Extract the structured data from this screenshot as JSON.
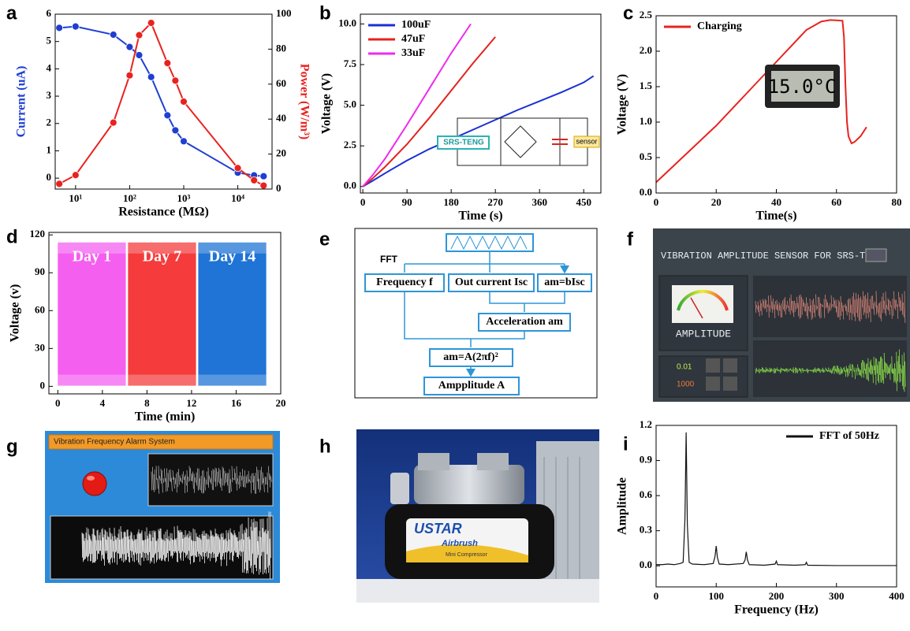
{
  "chart_data": [
    {
      "type": "line",
      "label": "a",
      "xlabel": "Resistance (MΩ)",
      "ylabel": "Current (uA)",
      "y2label": "Power (W/m³)",
      "xlog": true,
      "markers": true,
      "xlim": [
        4.2,
        43000
      ],
      "xticks": [
        {
          "value": 10,
          "label": "10¹"
        },
        {
          "value": 100,
          "label": "10²"
        },
        {
          "value": 1000,
          "label": "10³"
        },
        {
          "value": 10000,
          "label": "10⁴"
        }
      ],
      "ylim": [
        -0.4,
        6
      ],
      "yticks": [
        0,
        1,
        2,
        3,
        4,
        5,
        6
      ],
      "y2lim": [
        0,
        100
      ],
      "y2ticks": [
        0,
        20,
        40,
        60,
        80,
        100
      ],
      "series": [
        {
          "color": "#1f3fd1",
          "x": [
            5,
            10,
            50,
            100,
            150,
            250,
            500,
            700,
            1000,
            10000,
            20000,
            30000
          ],
          "values": [
            5.5,
            5.55,
            5.25,
            4.8,
            4.5,
            3.7,
            2.3,
            1.75,
            1.35,
            0.2,
            0.1,
            0.07
          ]
        },
        {
          "color": "#e8231f",
          "axis": "y2",
          "x": [
            5,
            10,
            50,
            100,
            150,
            250,
            500,
            700,
            1000,
            10000,
            20000,
            30000
          ],
          "values": [
            3,
            8,
            38,
            65,
            88,
            95,
            72,
            62,
            50,
            12,
            5,
            2
          ]
        }
      ]
    },
    {
      "type": "line",
      "label": "b",
      "xlabel": "Time (s)",
      "ylabel": "Voltage (V)",
      "legend": "upper left",
      "xlim": [
        -5,
        485
      ],
      "xticks": [
        0,
        90,
        180,
        270,
        360,
        450
      ],
      "ylim": [
        -0.4,
        10.6
      ],
      "yticks": [
        {
          "value": 0,
          "label": "0.0"
        },
        {
          "value": 2.5,
          "label": "2.5"
        },
        {
          "value": 5,
          "label": "5.0"
        },
        {
          "value": 7.5,
          "label": "7.5"
        },
        {
          "value": 10,
          "label": "10.0"
        }
      ],
      "series": [
        {
          "name": "100uF",
          "color": "#1a2fd6",
          "x": [
            0,
            20,
            50,
            90,
            135,
            180,
            225,
            270,
            315,
            360,
            405,
            450,
            470
          ],
          "values": [
            0,
            0.35,
            0.9,
            1.6,
            2.3,
            2.9,
            3.5,
            4.1,
            4.7,
            5.25,
            5.8,
            6.4,
            6.8
          ]
        },
        {
          "name": "47uF",
          "color": "#e3221c",
          "x": [
            0,
            20,
            45,
            90,
            135,
            180,
            225,
            270
          ],
          "values": [
            0,
            0.5,
            1.2,
            2.6,
            4.2,
            5.9,
            7.6,
            9.2
          ]
        },
        {
          "name": "33uF",
          "color": "#ee2bee",
          "x": [
            0,
            20,
            45,
            90,
            135,
            180,
            220
          ],
          "values": [
            0,
            0.7,
            1.7,
            3.8,
            6.0,
            8.2,
            10.0
          ]
        }
      ],
      "inset": {
        "source": "SRS-TENG",
        "load": "sensor"
      }
    },
    {
      "type": "line",
      "label": "c",
      "xlabel": "Time(s)",
      "ylabel": "Voltage (V)",
      "legend": "upper left",
      "xlim": [
        0,
        80
      ],
      "xticks": [
        0,
        20,
        40,
        60,
        80
      ],
      "ylim": [
        0,
        2.5
      ],
      "yticks": [
        {
          "value": 0,
          "label": "0.0"
        },
        {
          "value": 0.5,
          "label": "0.5"
        },
        {
          "value": 1,
          "label": "1.0"
        },
        {
          "value": 1.5,
          "label": "1.5"
        },
        {
          "value": 2,
          "label": "2.0"
        },
        {
          "value": 2.5,
          "label": "2.5"
        }
      ],
      "series": [
        {
          "name": "Charging",
          "color": "#e8231f",
          "x": [
            0,
            5,
            10,
            20,
            30,
            40,
            50,
            55,
            58,
            62,
            62.5,
            63,
            63.5,
            64,
            65,
            66,
            68,
            70
          ],
          "values": [
            0.15,
            0.35,
            0.55,
            0.95,
            1.4,
            1.85,
            2.3,
            2.42,
            2.44,
            2.43,
            2.2,
            1.5,
            1.0,
            0.8,
            0.7,
            0.72,
            0.8,
            0.93
          ]
        }
      ],
      "lcd": "15.0°C"
    },
    {
      "type": "band",
      "label": "d",
      "xlabel": "Time (min)",
      "ylabel": "Voltage (v)",
      "xlim": [
        -0.8,
        20
      ],
      "xticks": [
        0,
        4,
        8,
        12,
        16,
        20
      ],
      "ylim": [
        -6,
        122
      ],
      "yticks": [
        0,
        30,
        60,
        90,
        120
      ],
      "series": [
        {
          "name": "Day 1",
          "color": "#f55ff0",
          "x": [
            0,
            6.1
          ],
          "values": [
            0.5,
            114
          ]
        },
        {
          "name": "Day 7",
          "color": "#f53b3b",
          "x": [
            6.3,
            12.4
          ],
          "values": [
            0.5,
            114
          ]
        },
        {
          "name": "Day 14",
          "color": "#1f74d6",
          "x": [
            12.6,
            18.7
          ],
          "values": [
            0.5,
            114
          ]
        }
      ]
    },
    {
      "type": "line",
      "label": "i",
      "xlabel": "Frequency (Hz)",
      "ylabel": "Amplitude",
      "legend": "upper right",
      "line_width": 1.2,
      "xlim": [
        0,
        400
      ],
      "xticks": [
        0,
        100,
        200,
        300,
        400
      ],
      "ylim": [
        -0.18,
        1.2
      ],
      "yticks": [
        {
          "value": 0,
          "label": "0.0"
        },
        {
          "value": 0.3,
          "label": "0.3"
        },
        {
          "value": 0.6,
          "label": "0.6"
        },
        {
          "value": 0.9,
          "label": "0.9"
        },
        {
          "value": 1.2,
          "label": "1.2"
        }
      ],
      "series": [
        {
          "name": "FFT of 50Hz",
          "color": "#111111",
          "x": [
            0,
            10,
            20,
            30,
            40,
            45,
            48,
            50,
            52,
            55,
            60,
            80,
            95,
            98,
            100,
            102,
            105,
            120,
            145,
            148,
            150,
            152,
            155,
            180,
            198,
            200,
            202,
            230,
            248,
            250,
            252,
            300,
            350,
            400
          ],
          "values": [
            0.01,
            0.01,
            0.015,
            0.01,
            0.02,
            0.03,
            0.4,
            1.14,
            0.35,
            0.03,
            0.015,
            0.01,
            0.02,
            0.08,
            0.17,
            0.07,
            0.015,
            0.01,
            0.02,
            0.05,
            0.12,
            0.05,
            0.01,
            0.005,
            0.015,
            0.04,
            0.01,
            0.005,
            0.01,
            0.03,
            0.005,
            0.002,
            0.002,
            0.002
          ]
        }
      ]
    }
  ],
  "diagram": {
    "label": "e",
    "edge_label": "FFT",
    "nodes": [
      "Frequency f",
      "Out current Isc",
      "am=bIsc",
      "Acceleration am",
      "am=A(2πf)²",
      "Ampplitude A"
    ]
  },
  "screens": [
    {
      "label": "f",
      "title": "VIBRATION AMPLITUDE SENSOR FOR SRS-TENG",
      "gauge": "AMPLITUDE",
      "readings": [
        "0.01",
        "1000"
      ]
    },
    {
      "label": "g",
      "title": "Vibration Frequency Alarm System"
    }
  ],
  "photo": {
    "label": "h",
    "brand": "USTAR",
    "model": "Airbrush",
    "caption": "Mini Compressor"
  }
}
